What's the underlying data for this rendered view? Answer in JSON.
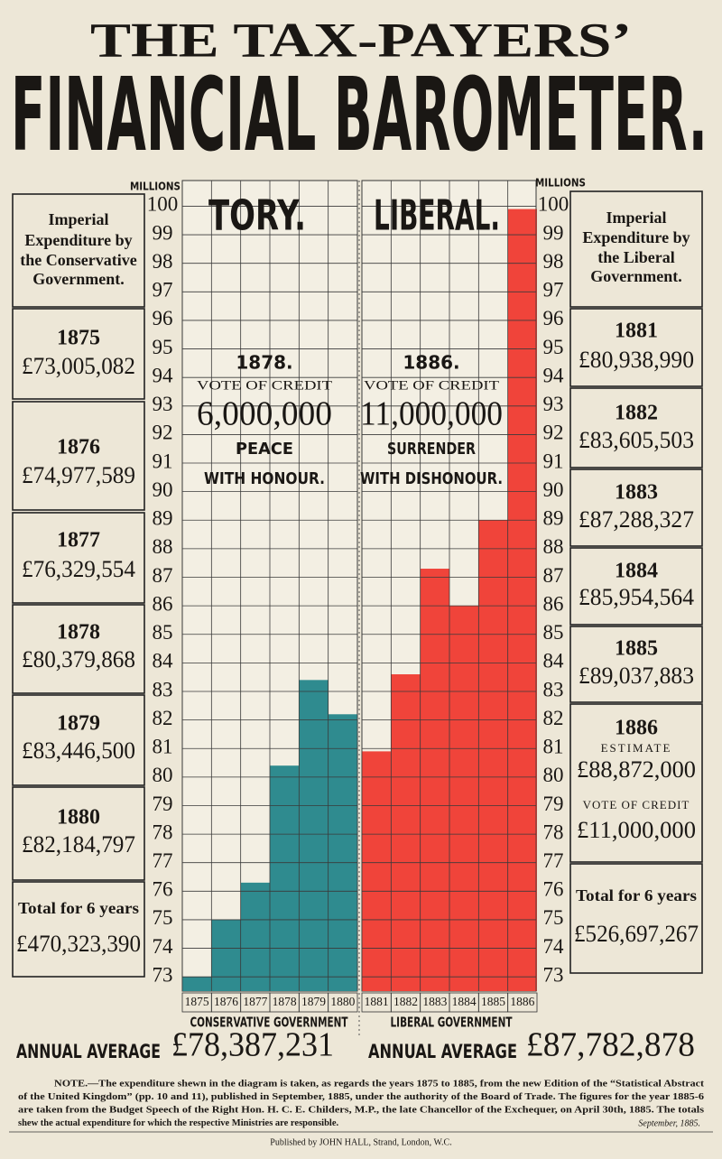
{
  "header": {
    "line1": "THE TAX-PAYERS’",
    "line2": "FINANCIAL BAROMETER."
  },
  "chart_data": {
    "type": "bar",
    "ylabel": "MILLIONS",
    "categories": [
      "1875",
      "1876",
      "1877",
      "1878",
      "1879",
      "1880",
      "1881",
      "1882",
      "1883",
      "1884",
      "1885",
      "1886"
    ],
    "series": [
      {
        "name": "TORY.",
        "color": "#2f8b8f",
        "values": [
          73.0,
          75.0,
          76.3,
          80.4,
          83.4,
          82.2,
          null,
          null,
          null,
          null,
          null,
          null
        ]
      },
      {
        "name": "LIBERAL.",
        "color": "#f0443a",
        "values": [
          null,
          null,
          null,
          null,
          null,
          null,
          80.9,
          83.6,
          87.3,
          86.0,
          89.0,
          99.9
        ]
      }
    ],
    "groups": [
      "CONSERVATIVE GOVERNMENT",
      "LIBERAL GOVERNMENT"
    ],
    "ylim": [
      72.5,
      100.9
    ],
    "yticks": [
      73,
      74,
      75,
      76,
      77,
      78,
      79,
      80,
      81,
      82,
      83,
      84,
      85,
      86,
      87,
      88,
      89,
      90,
      91,
      92,
      93,
      94,
      95,
      96,
      97,
      98,
      99,
      100
    ],
    "grid": true,
    "annotations": [
      [
        "1878.",
        "VOTE OF CREDIT",
        "6,000,000",
        "PEACE",
        "WITH HONOUR."
      ],
      [
        "1886.",
        "VOTE OF CREDIT",
        "11,000,000",
        "SURRENDER",
        "WITH DISHONOUR."
      ]
    ]
  },
  "left_panel": {
    "heading": [
      "Imperial",
      "Expenditure by",
      "the Conservative",
      "Government."
    ],
    "years": [
      {
        "year": "1875",
        "amount": "£73,005,082"
      },
      {
        "year": "1876",
        "amount": "£74,977,589"
      },
      {
        "year": "1877",
        "amount": "£76,329,554"
      },
      {
        "year": "1878",
        "amount": "£80,379,868"
      },
      {
        "year": "1879",
        "amount": "£83,446,500"
      },
      {
        "year": "1880",
        "amount": "£82,184,797"
      }
    ],
    "total_label": "Total for 6 years",
    "total": "£470,323,390"
  },
  "right_panel": {
    "heading": [
      "Imperial",
      "Expenditure by",
      "the Liberal",
      "Government."
    ],
    "years": [
      {
        "year": "1881",
        "amount": "£80,938,990"
      },
      {
        "year": "1882",
        "amount": "£83,605,503"
      },
      {
        "year": "1883",
        "amount": "£87,288,327"
      },
      {
        "year": "1884",
        "amount": "£85,954,564"
      },
      {
        "year": "1885",
        "amount": "£89,037,883"
      }
    ],
    "estimate": {
      "year": "1886",
      "estimate_label": "ESTIMATE",
      "amount": "£88,872,000",
      "vote_label": "VOTE OF CREDIT",
      "vote": "£11,000,000"
    },
    "total_label": "Total for 6 years",
    "total": "£526,697,267"
  },
  "averages": [
    {
      "label": "ANNUAL AVERAGE",
      "amount": "£78,387,231"
    },
    {
      "label": "ANNUAL AVERAGE",
      "amount": "£87,782,878"
    }
  ],
  "note": [
    "NOTE.—The expenditure shewn in the diagram is taken, as regards the years 1875 to 1885, from the new Edition of the “Statistical Abstract",
    "of the United Kingdom” (pp. 10 and 11), published in September, 1885, under the authority of the Board of Trade.   The figures for the year 1885-6",
    "are taken from the Budget Speech of the Right Hon. H. C. E. Childers, M.P., the late Chancellor of the Exchequer, on April 30th, 1885.   The totals",
    "shew the actual expenditure for which the respective Ministries are responsible."
  ],
  "note_date": "September, 1885.",
  "footer": "Published by JOHN HALL, Strand, London, W.C."
}
